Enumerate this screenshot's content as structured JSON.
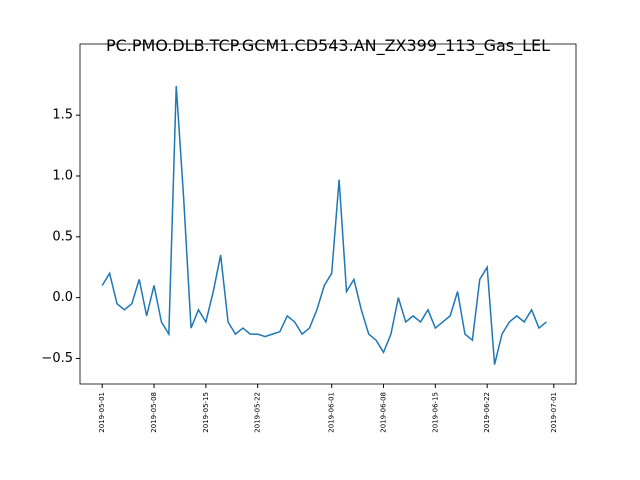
{
  "chart_data": {
    "type": "line",
    "title": "PC.PMO.DLB.TCP.GCM1.CD543.AN_ZX399_113_Gas_LEL",
    "x": [
      "2019-05-01",
      "2019-05-02",
      "2019-05-03",
      "2019-05-04",
      "2019-05-05",
      "2019-05-06",
      "2019-05-07",
      "2019-05-08",
      "2019-05-09",
      "2019-05-10",
      "2019-05-11",
      "2019-05-12",
      "2019-05-13",
      "2019-05-14",
      "2019-05-15",
      "2019-05-16",
      "2019-05-17",
      "2019-05-18",
      "2019-05-19",
      "2019-05-20",
      "2019-05-21",
      "2019-05-22",
      "2019-05-23",
      "2019-05-24",
      "2019-05-25",
      "2019-05-26",
      "2019-05-27",
      "2019-05-28",
      "2019-05-29",
      "2019-05-30",
      "2019-05-31",
      "2019-06-01",
      "2019-06-02",
      "2019-06-03",
      "2019-06-04",
      "2019-06-05",
      "2019-06-06",
      "2019-06-07",
      "2019-06-08",
      "2019-06-09",
      "2019-06-10",
      "2019-06-11",
      "2019-06-12",
      "2019-06-13",
      "2019-06-14",
      "2019-06-15",
      "2019-06-16",
      "2019-06-17",
      "2019-06-18",
      "2019-06-19",
      "2019-06-20",
      "2019-06-21",
      "2019-06-22",
      "2019-06-23",
      "2019-06-24",
      "2019-06-25",
      "2019-06-26",
      "2019-06-27",
      "2019-06-28",
      "2019-06-29",
      "2019-06-30"
    ],
    "series": [
      {
        "color": "#1f77b4",
        "values": [
          0.1,
          0.2,
          -0.05,
          -0.1,
          -0.05,
          0.15,
          -0.15,
          0.1,
          -0.2,
          -0.3,
          1.74,
          0.82,
          -0.25,
          -0.1,
          -0.2,
          0.05,
          0.35,
          -0.2,
          -0.3,
          -0.25,
          -0.3,
          -0.3,
          -0.32,
          -0.3,
          -0.28,
          -0.15,
          -0.2,
          -0.3,
          -0.25,
          -0.1,
          0.1,
          0.2,
          0.97,
          0.05,
          0.15,
          -0.1,
          -0.3,
          -0.35,
          -0.45,
          -0.3,
          0.0,
          -0.2,
          -0.15,
          -0.2,
          -0.1,
          -0.25,
          -0.2,
          -0.15,
          0.05,
          -0.3,
          -0.35,
          0.15,
          0.25,
          -0.55,
          -0.3,
          -0.2,
          -0.15,
          -0.2,
          -0.1,
          -0.25,
          -0.2
        ]
      }
    ],
    "xlim": [
      "2019-04-28",
      "2019-07-04"
    ],
    "ylim": [
      -0.71,
      1.97
    ],
    "xticks": [
      "2019-05-01",
      "2019-05-08",
      "2019-05-15",
      "2019-05-22",
      "2019-06-01",
      "2019-06-08",
      "2019-06-15",
      "2019-06-22",
      "2019-07-01"
    ],
    "yticks": [
      {
        "value": -0.5,
        "label": "−0.5"
      },
      {
        "value": 0,
        "label": "0.0"
      },
      {
        "value": 0.5,
        "label": "0.5"
      },
      {
        "value": 1,
        "label": "1.0"
      },
      {
        "value": 1.5,
        "label": "1.5"
      }
    ]
  }
}
